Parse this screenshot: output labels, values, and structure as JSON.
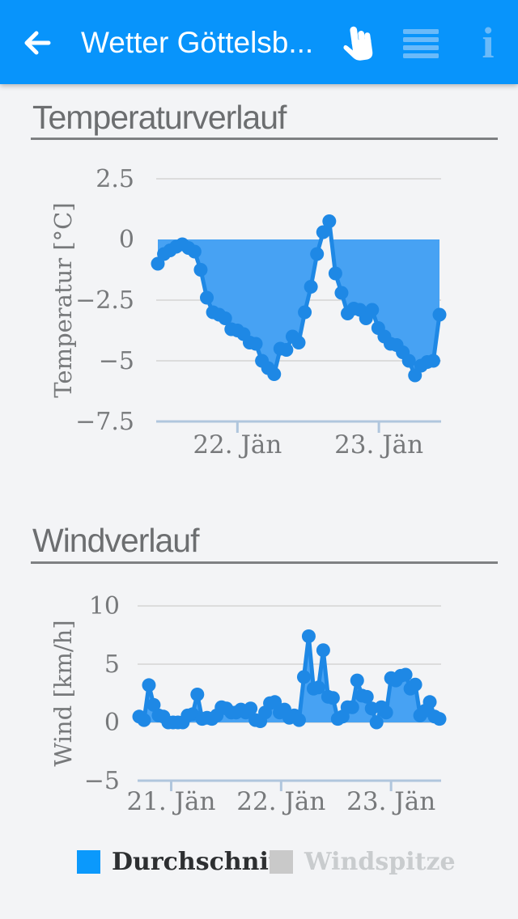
{
  "header": {
    "title": "Wetter Göttelsb...",
    "back_icon": "arrow-left",
    "hand_icon": "pan-hand",
    "menu_icon": "hamburger-menu",
    "info_icon": "info-i",
    "colors": {
      "bar": "#0894FB",
      "icon_light": "#6ABAF9",
      "text": "#FFFFFF"
    }
  },
  "sections": [
    {
      "heading": "Temperaturverlauf"
    },
    {
      "heading": "Windverlauf"
    }
  ],
  "chart_data": [
    {
      "name": "temperature",
      "type": "area",
      "title": "Temperaturverlauf",
      "xlabel": "",
      "ylabel": "Temperatur [°C]",
      "ylim": [
        -7.5,
        2.5
      ],
      "grid": true,
      "baseline": 0,
      "fill_side": "below",
      "x_unit": "samples (~hourly)",
      "yticks": [
        {
          "value": 2.5,
          "label": "2.5",
          "grid": true
        },
        {
          "value": 0,
          "label": "0",
          "grid": false
        },
        {
          "value": -2.5,
          "label": "−2.5",
          "grid": true
        },
        {
          "value": -5,
          "label": "−5",
          "grid": true
        },
        {
          "value": -7.5,
          "label": "−7.5",
          "grid": false
        }
      ],
      "xticks": [
        {
          "pos": 13.0,
          "label": "22. Jän"
        },
        {
          "pos": 36.1,
          "label": "23. Jän"
        }
      ],
      "values": [
        -1.0,
        -0.6,
        -0.45,
        -0.3,
        -0.2,
        -0.35,
        -0.5,
        -1.25,
        -2.4,
        -3.0,
        -3.1,
        -3.25,
        -3.7,
        -3.75,
        -3.9,
        -4.25,
        -4.3,
        -5.0,
        -5.3,
        -5.55,
        -4.5,
        -4.55,
        -4.0,
        -4.25,
        -3.0,
        -1.95,
        -0.6,
        0.3,
        0.75,
        -1.4,
        -2.2,
        -3.05,
        -2.85,
        -2.9,
        -3.25,
        -2.9,
        -3.65,
        -4.0,
        -4.3,
        -4.35,
        -4.65,
        -5.0,
        -5.6,
        -5.2,
        -5.05,
        -5.0,
        -3.1
      ],
      "colors": {
        "line": "#1E88E5",
        "fill": "#47A2F3",
        "grid": "#DCDCDC",
        "axis": "#B0C6DD"
      }
    },
    {
      "name": "wind",
      "type": "area",
      "title": "Windverlauf",
      "xlabel": "",
      "ylabel": "Wind [km/h]",
      "ylim": [
        -5,
        10
      ],
      "grid": true,
      "baseline": 0,
      "fill_side": "above",
      "x_unit": "samples (~hourly)",
      "series_name": "Durchschnitt",
      "yticks": [
        {
          "value": 10,
          "label": "10",
          "grid": true
        },
        {
          "value": 5,
          "label": "5",
          "grid": true
        },
        {
          "value": 0,
          "label": "0",
          "grid": true
        },
        {
          "value": -5,
          "label": "−5",
          "grid": false
        }
      ],
      "xticks": [
        {
          "pos": 6.6,
          "label": "21. Jän"
        },
        {
          "pos": 29.3,
          "label": "22. Jän"
        },
        {
          "pos": 52.0,
          "label": "23. Jän"
        }
      ],
      "values": [
        0.5,
        0.2,
        3.2,
        1.5,
        0.6,
        0.5,
        0.0,
        0.0,
        0.0,
        0.0,
        0.6,
        0.7,
        2.4,
        0.3,
        0.4,
        0.3,
        0.6,
        1.3,
        1.2,
        0.85,
        0.85,
        1.1,
        0.85,
        1.2,
        0.2,
        0.1,
        0.85,
        1.65,
        1.75,
        0.85,
        1.1,
        0.4,
        0.6,
        0.2,
        3.9,
        7.4,
        2.9,
        3.0,
        6.2,
        2.2,
        2.1,
        0.3,
        0.5,
        1.3,
        1.3,
        3.6,
        2.3,
        2.2,
        1.2,
        0.0,
        1.3,
        0.85,
        3.8,
        3.6,
        4.0,
        4.1,
        2.9,
        3.25,
        0.6,
        1.0,
        1.75,
        0.5,
        0.3
      ],
      "colors": {
        "line": "#1E88E5",
        "fill": "#47A2F3",
        "grid": "#DCDCDC",
        "axis": "#B0C6DD"
      }
    }
  ],
  "legend": {
    "items": [
      {
        "label": "Durchschnitt",
        "color": "#0B99FC",
        "active": true
      },
      {
        "label": "Windspitze",
        "color": "#C9C9C9",
        "active": false
      }
    ]
  }
}
